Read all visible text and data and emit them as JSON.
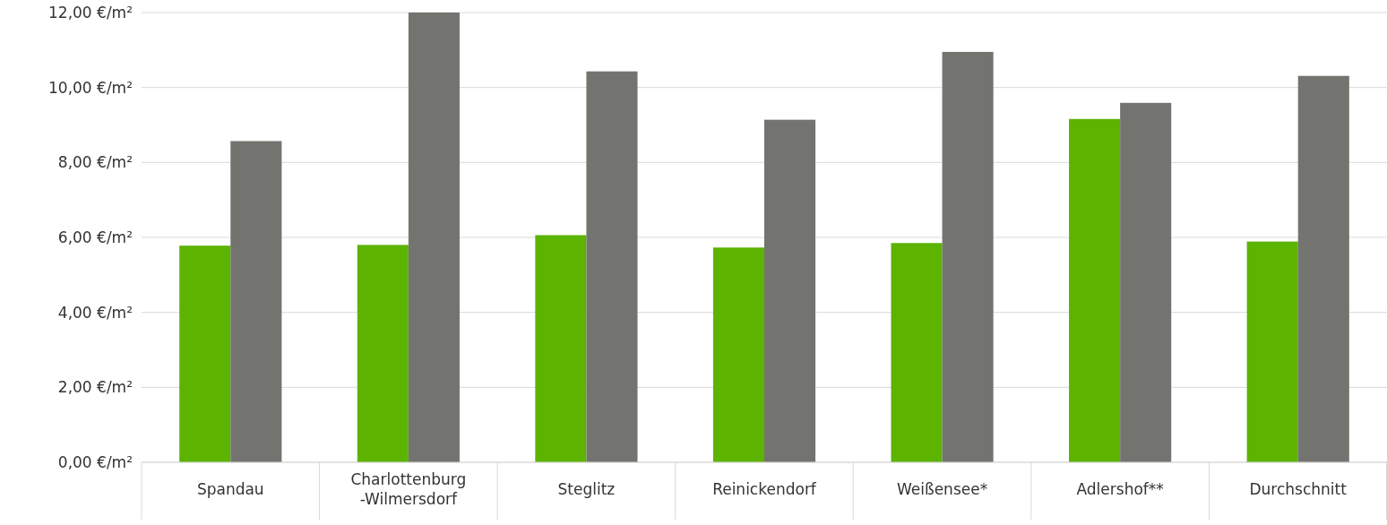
{
  "chart_data": {
    "type": "bar",
    "categories": [
      "Spandau",
      "Charlottenburg-Wilmersdorf",
      "Steglitz",
      "Reinickendorf",
      "Weißensee*",
      "Adlershof**",
      "Durchschnitt"
    ],
    "series": [
      {
        "color": "#5cb300",
        "values": [
          5.78,
          5.8,
          6.06,
          5.73,
          5.85,
          9.16,
          5.89
        ]
      },
      {
        "color": "#73746f",
        "values": [
          8.57,
          12.0,
          10.43,
          9.14,
          10.95,
          9.59,
          10.31
        ]
      }
    ],
    "ylim": [
      0,
      12
    ],
    "yticks": [
      {
        "value": 0,
        "label": "0,00 €/m²"
      },
      {
        "value": 2,
        "label": "2,00 €/m²"
      },
      {
        "value": 4,
        "label": "4,00 €/m²"
      },
      {
        "value": 6,
        "label": "6,00 €/m²"
      },
      {
        "value": 8,
        "label": "8,00 €/m²"
      },
      {
        "value": 10,
        "label": "10,00 €/m²"
      },
      {
        "value": 12,
        "label": "12,00 €/m²"
      }
    ],
    "grid": "y"
  }
}
